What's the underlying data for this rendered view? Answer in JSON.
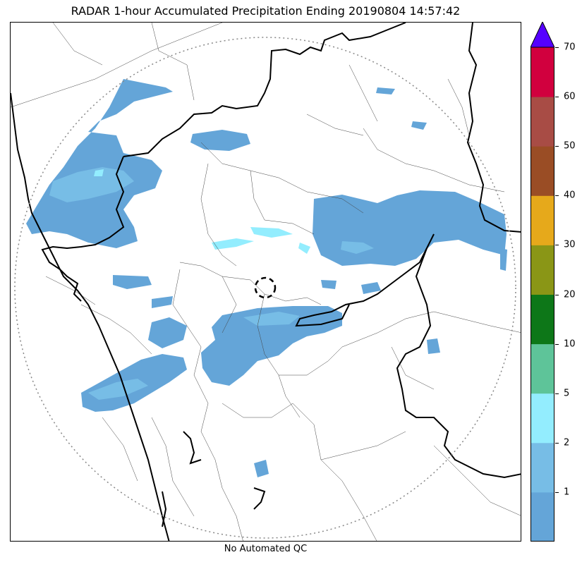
{
  "title": "RADAR 1-hour Accumulated Precipitation Ending 20190804 14:57:42",
  "footer": "No Automated QC",
  "colorbar": {
    "extend_color": "#5500ff",
    "bins": [
      {
        "color": "#64a5d8"
      },
      {
        "color": "#77bde6"
      },
      {
        "color": "#93edfe"
      },
      {
        "color": "#5ec499"
      },
      {
        "color": "#0d7718"
      },
      {
        "color": "#8a9616"
      },
      {
        "color": "#e6a91b"
      },
      {
        "color": "#9a4d25"
      },
      {
        "color": "#a84c45"
      },
      {
        "color": "#d1003e"
      }
    ],
    "tick_labels": [
      "1",
      "2",
      "5",
      "10",
      "20",
      "30",
      "40",
      "50",
      "60",
      "70"
    ]
  },
  "map": {
    "range_ring": "dotted",
    "radar_site_marker": "dashed-circle",
    "precip_fill_color": "#64a5d8",
    "precip_light_color": "#77bde6",
    "precip_cyan_color": "#93edfe"
  }
}
